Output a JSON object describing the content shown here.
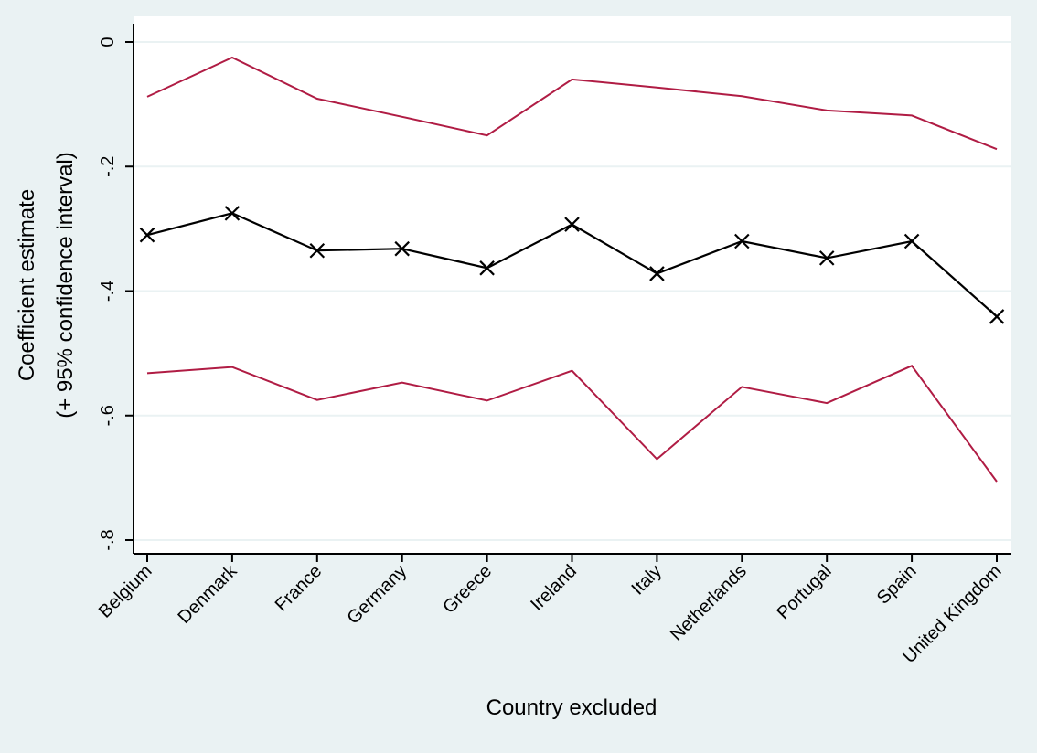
{
  "chart_data": {
    "type": "line",
    "title": "",
    "xlabel": "Country excluded",
    "ylabel": [
      "Coefficient estimate",
      "(+ 95% confidence interval)"
    ],
    "ylim": [
      -0.8,
      0
    ],
    "yticks": [
      0,
      -0.2,
      -0.4,
      -0.6,
      -0.8
    ],
    "ytick_labels": [
      "0",
      "-.2",
      "-.4",
      "-.6",
      "-.8"
    ],
    "grid": true,
    "legend": "none",
    "categories": [
      "Belgium",
      "Denmark",
      "France",
      "Germany",
      "Greece",
      "Ireland",
      "Italy",
      "Netherlands",
      "Portugal",
      "Spain",
      "United Kingdom"
    ],
    "series": [
      {
        "role": "upper-ci",
        "color": "#b01c44",
        "marker": "none",
        "values": [
          -0.088,
          -0.025,
          -0.091,
          -0.12,
          -0.15,
          -0.06,
          -0.073,
          -0.087,
          -0.11,
          -0.118,
          -0.172
        ]
      },
      {
        "role": "estimate",
        "color": "#000000",
        "marker": "x",
        "values": [
          -0.31,
          -0.275,
          -0.335,
          -0.332,
          -0.363,
          -0.293,
          -0.372,
          -0.32,
          -0.347,
          -0.32,
          -0.441
        ]
      },
      {
        "role": "lower-ci",
        "color": "#b01c44",
        "marker": "none",
        "values": [
          -0.532,
          -0.522,
          -0.575,
          -0.547,
          -0.576,
          -0.528,
          -0.67,
          -0.554,
          -0.58,
          -0.52,
          -0.706
        ]
      }
    ]
  }
}
